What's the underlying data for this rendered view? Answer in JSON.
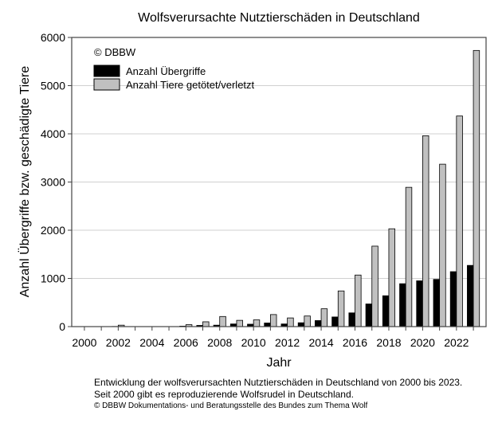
{
  "chart_data": {
    "type": "bar",
    "title": "Wolfsverursachte Nutztierschäden in Deutschland",
    "xlabel": "Jahr",
    "ylabel": "Anzahl Übergriffe bzw. geschädigte Tiere",
    "ylim": [
      0,
      6000
    ],
    "yticks": [
      "0",
      "1000",
      "2000",
      "3000",
      "4000",
      "5000",
      "6000"
    ],
    "xticks": [
      "2000",
      "2002",
      "2004",
      "2006",
      "2008",
      "2010",
      "2012",
      "2014",
      "2016",
      "2018",
      "2020",
      "2022"
    ],
    "grid": true,
    "legend_position": "top-left",
    "copyright": "© DBBW",
    "categories": [
      2000,
      2001,
      2002,
      2003,
      2004,
      2005,
      2006,
      2007,
      2008,
      2009,
      2010,
      2011,
      2012,
      2013,
      2014,
      2015,
      2016,
      2017,
      2018,
      2019,
      2020,
      2021,
      2022,
      2023
    ],
    "series": [
      {
        "name": "Anzahl Übergriffe",
        "color": "#000000",
        "values": [
          0,
          0,
          3,
          0,
          0,
          0,
          10,
          25,
          30,
          55,
          50,
          75,
          55,
          80,
          125,
          200,
          285,
          470,
          640,
          890,
          950,
          980,
          1140,
          1270
        ]
      },
      {
        "name": "Anzahl Tiere getötet/verletzt",
        "color": "#c0c0c0",
        "values": [
          0,
          0,
          30,
          0,
          0,
          0,
          40,
          100,
          210,
          130,
          140,
          250,
          180,
          220,
          370,
          740,
          1070,
          1670,
          2030,
          2890,
          3960,
          3370,
          4370,
          5730
        ]
      }
    ]
  },
  "caption": {
    "line1": "Entwicklung der wolfsverursachten Nutztierschäden in Deutschland von 2000 bis 2023.",
    "line2": "Seit 2000 gibt es reproduzierende Wolfsrudel in Deutschland.",
    "line3": "© DBBW Dokumentations- und Beratungsstelle des Bundes zum Thema Wolf"
  }
}
